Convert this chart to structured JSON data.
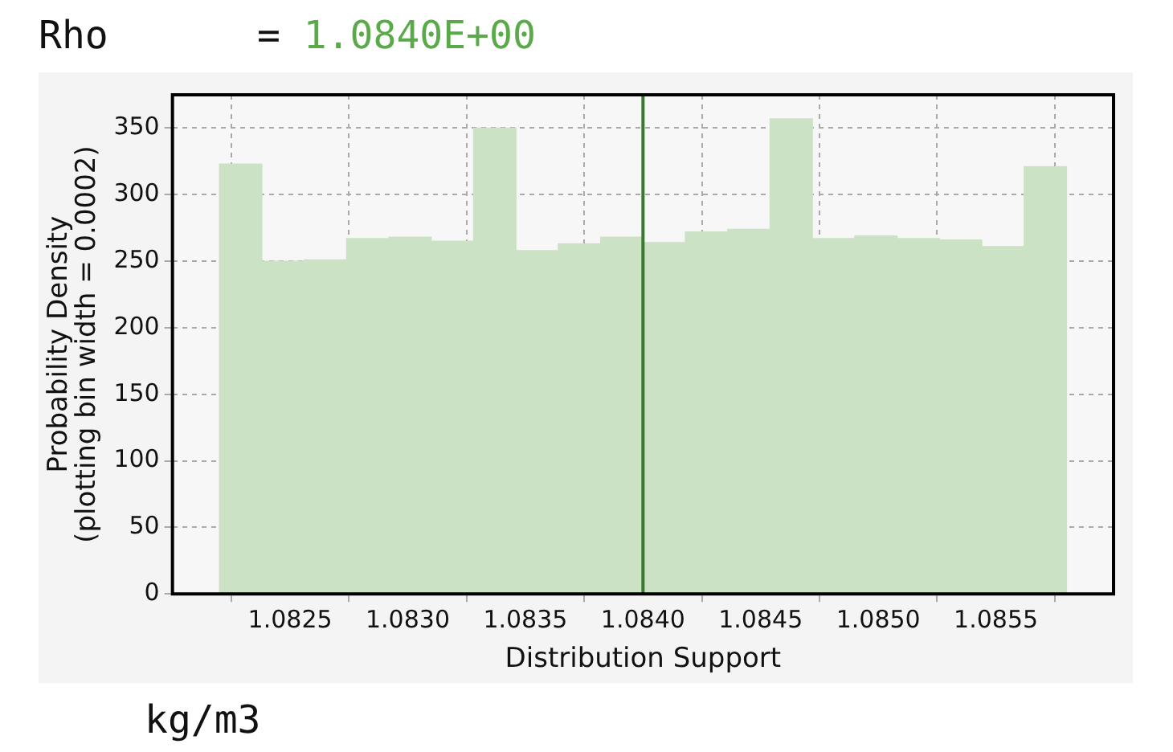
{
  "chart_data": {
    "type": "histogram",
    "xlabel": "Distribution Support",
    "ylabel": "Probability Density\n(plotting bin width = 0.0002)",
    "bins": [
      1.0822,
      1.08238,
      1.08256,
      1.08274,
      1.08292,
      1.0831,
      1.08328,
      1.08346,
      1.08364,
      1.08382,
      1.084,
      1.08418,
      1.08436,
      1.08454,
      1.08472,
      1.0849,
      1.08508,
      1.08526,
      1.08544,
      1.08562,
      1.0858
    ],
    "values": [
      323,
      250,
      251,
      267,
      268,
      265,
      350,
      258,
      263,
      268,
      264,
      272,
      274,
      357,
      267,
      269,
      267,
      266,
      261,
      321
    ],
    "color": "#cbe2c5",
    "xlim": [
      1.082,
      1.086
    ],
    "xticks": [
      {
        "value": 1.0825,
        "label": "1.0825"
      },
      {
        "value": 1.083,
        "label": "1.0830"
      },
      {
        "value": 1.0835,
        "label": "1.0835"
      },
      {
        "value": 1.084,
        "label": "1.0840"
      },
      {
        "value": 1.0845,
        "label": "1.0845"
      },
      {
        "value": 1.085,
        "label": "1.0850"
      },
      {
        "value": 1.0855,
        "label": "1.0855"
      }
    ],
    "ylim": [
      0,
      375
    ],
    "yticks": [
      0,
      50,
      100,
      150,
      200,
      250,
      300,
      350
    ],
    "grid": true,
    "ref_lines": [
      {
        "axis": "x",
        "value": 1.084,
        "color": "#3a7a30"
      }
    ],
    "annotations": [
      "Rho",
      "= 1.0840E+00",
      "kg/m3"
    ]
  }
}
